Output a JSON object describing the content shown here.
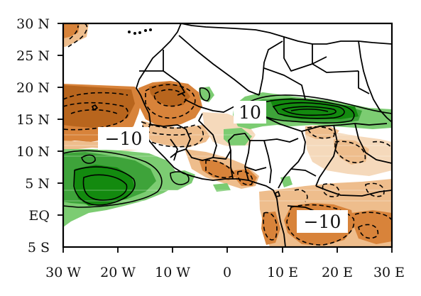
{
  "map": {
    "x_ticks": [
      "30 W",
      "20 W",
      "10 W",
      "0",
      "10 E",
      "20 E",
      "30 E"
    ],
    "y_ticks": [
      "30 N",
      "25 N",
      "20 N",
      "15 N",
      "10 N",
      "5 N",
      "EQ",
      "5 S"
    ],
    "x_range_deg": [
      -30,
      30
    ],
    "y_range_deg": [
      -5,
      30
    ],
    "contour_labels": [
      {
        "text": "10",
        "lon": 3.5,
        "lat": 15.9
      },
      {
        "text": "−10",
        "lon": -22.5,
        "lat": 12.1
      },
      {
        "text": "−10",
        "lon": 15.2,
        "lat": 0.8
      }
    ],
    "colors": {
      "positive_strong": "#138a0f",
      "positive_mid": "#3ea33a",
      "positive_light": "#7ccc72",
      "negative_strong": "#b8651d",
      "negative_mid": "#d8833a",
      "negative_light": "#eebd8c",
      "negative_pale": "#f5d9bb"
    }
  }
}
